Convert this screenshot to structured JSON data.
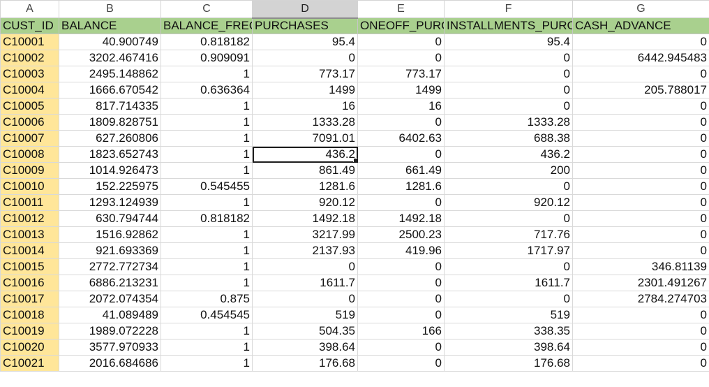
{
  "columns": [
    "A",
    "B",
    "C",
    "D",
    "E",
    "F",
    "G"
  ],
  "selected_column": "D",
  "headers": [
    "CUST_ID",
    "BALANCE",
    "BALANCE_FREQUENCY",
    "PURCHASES",
    "ONEOFF_PURCHASES",
    "INSTALLMENTS_PURCHASES",
    "CASH_ADVANCE"
  ],
  "header_display": [
    "CUST_ID",
    "BALANCE",
    "BALANCE_FREQU",
    "PURCHASES",
    "ONEOFF_PURCH",
    "INSTALLMENTS_PURCH",
    "CASH_ADVANCE"
  ],
  "active_cell": {
    "row": 7,
    "col": 3,
    "address": "D8"
  },
  "rows": [
    [
      "C10001",
      "40.900749",
      "0.818182",
      "95.4",
      "0",
      "95.4",
      "0"
    ],
    [
      "C10002",
      "3202.467416",
      "0.909091",
      "0",
      "0",
      "0",
      "6442.945483"
    ],
    [
      "C10003",
      "2495.148862",
      "1",
      "773.17",
      "773.17",
      "0",
      "0"
    ],
    [
      "C10004",
      "1666.670542",
      "0.636364",
      "1499",
      "1499",
      "0",
      "205.788017"
    ],
    [
      "C10005",
      "817.714335",
      "1",
      "16",
      "16",
      "0",
      "0"
    ],
    [
      "C10006",
      "1809.828751",
      "1",
      "1333.28",
      "0",
      "1333.28",
      "0"
    ],
    [
      "C10007",
      "627.260806",
      "1",
      "7091.01",
      "6402.63",
      "688.38",
      "0"
    ],
    [
      "C10008",
      "1823.652743",
      "1",
      "436.2",
      "0",
      "436.2",
      "0"
    ],
    [
      "C10009",
      "1014.926473",
      "1",
      "861.49",
      "661.49",
      "200",
      "0"
    ],
    [
      "C10010",
      "152.225975",
      "0.545455",
      "1281.6",
      "1281.6",
      "0",
      "0"
    ],
    [
      "C10011",
      "1293.124939",
      "1",
      "920.12",
      "0",
      "920.12",
      "0"
    ],
    [
      "C10012",
      "630.794744",
      "0.818182",
      "1492.18",
      "1492.18",
      "0",
      "0"
    ],
    [
      "C10013",
      "1516.92862",
      "1",
      "3217.99",
      "2500.23",
      "717.76",
      "0"
    ],
    [
      "C10014",
      "921.693369",
      "1",
      "2137.93",
      "419.96",
      "1717.97",
      "0"
    ],
    [
      "C10015",
      "2772.772734",
      "1",
      "0",
      "0",
      "0",
      "346.81139"
    ],
    [
      "C10016",
      "6886.213231",
      "1",
      "1611.7",
      "0",
      "1611.7",
      "2301.491267"
    ],
    [
      "C10017",
      "2072.074354",
      "0.875",
      "0",
      "0",
      "0",
      "2784.274703"
    ],
    [
      "C10018",
      "41.089489",
      "0.454545",
      "519",
      "0",
      "519",
      "0"
    ],
    [
      "C10019",
      "1989.072228",
      "1",
      "504.35",
      "166",
      "338.35",
      "0"
    ],
    [
      "C10020",
      "3577.970933",
      "1",
      "398.64",
      "0",
      "398.64",
      "0"
    ],
    [
      "C10021",
      "2016.684686",
      "1",
      "176.68",
      "0",
      "176.68",
      "0"
    ]
  ]
}
